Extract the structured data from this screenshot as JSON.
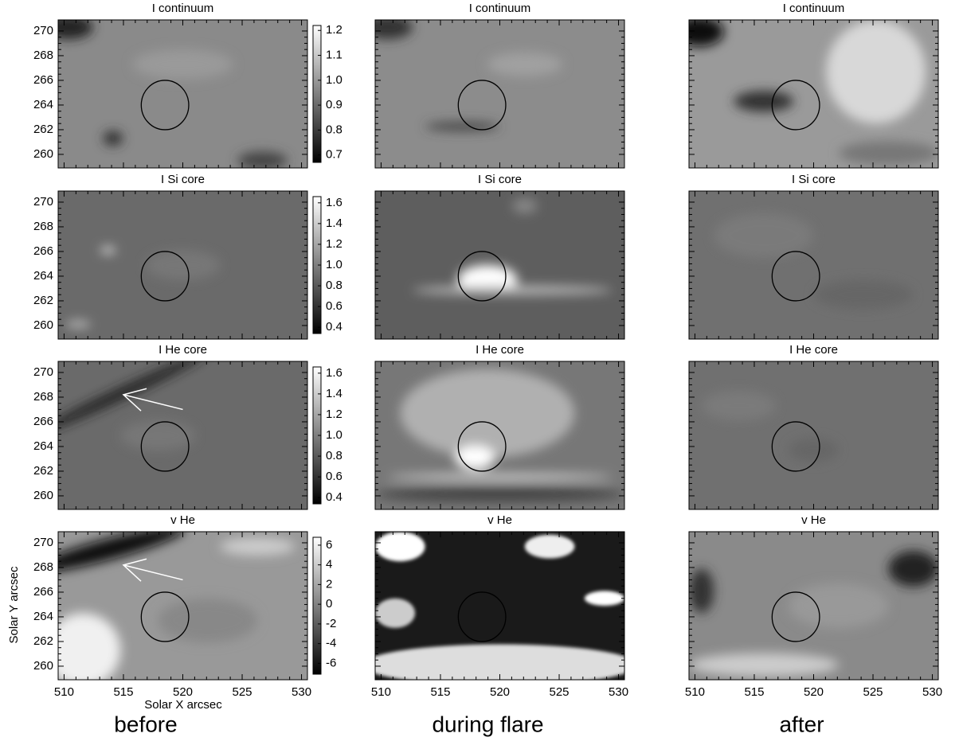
{
  "chart_data": {
    "type": "image-grid",
    "xlabel": "Solar X arcsec",
    "ylabel": "Solar Y arcsec",
    "xlim": [
      509.5,
      530.5
    ],
    "xticks": [
      510,
      515,
      520,
      525,
      530
    ],
    "ylim": [
      258.9,
      270.9
    ],
    "yticks": [
      260,
      262,
      264,
      266,
      268,
      270
    ],
    "circle": {
      "x": 518.5,
      "y": 264,
      "r": 2
    },
    "columns": [
      "before",
      "during flare",
      "after"
    ],
    "rows": [
      {
        "title": "I continuum",
        "clim": [
          0.67,
          1.22
        ],
        "cticks": [
          0.7,
          0.8,
          0.9,
          {
            "value": 1,
            "label": "1.0"
          },
          1.1,
          1.2
        ]
      },
      {
        "title": "I Si core",
        "clim": [
          0.34,
          1.66
        ],
        "cticks": [
          0.4,
          0.6,
          0.8,
          {
            "value": 1,
            "label": "1.0"
          },
          1.2,
          1.4,
          1.6
        ]
      },
      {
        "title": "I He core",
        "clim": [
          0.34,
          1.66
        ],
        "cticks": [
          0.4,
          0.6,
          0.8,
          {
            "value": 1,
            "label": "1.0"
          },
          1.2,
          1.4,
          1.6
        ],
        "arrow": {
          "x1": 520,
          "y1": 267,
          "x2": 515,
          "y2": 268.2
        }
      },
      {
        "title": "v He",
        "clim": [
          -7.1,
          6.8
        ],
        "cticks": [
          -6,
          -4,
          -2,
          0,
          2,
          4,
          6
        ],
        "arrow": {
          "x1": 520,
          "y1": 267,
          "x2": 515,
          "y2": 268.2
        }
      }
    ]
  }
}
